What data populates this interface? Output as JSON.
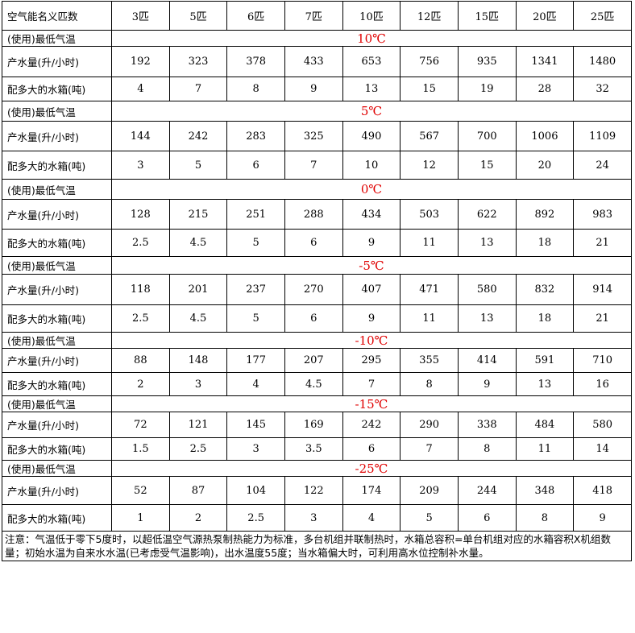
{
  "table": {
    "header": [
      "空气能名义匹数",
      "3匹",
      "5匹",
      "6匹",
      "7匹",
      "10匹",
      "12匹",
      "15匹",
      "20匹",
      "25匹"
    ],
    "groups": [
      {
        "temp_label": "(使用)最低气温",
        "temp": "10℃",
        "rows": [
          {
            "label": "产水量(升/小时)",
            "values": [
              192,
              323,
              378,
              433,
              653,
              756,
              935,
              1341,
              1480
            ]
          },
          {
            "label": "配多大的水箱(吨)",
            "values": [
              4,
              7,
              8,
              9,
              13,
              15,
              19,
              28,
              32
            ]
          }
        ]
      },
      {
        "temp_label": "(使用)最低气温",
        "temp": "5℃",
        "rows": [
          {
            "label": "产水量(升/小时)",
            "values": [
              144,
              242,
              283,
              325,
              490,
              567,
              700,
              1006,
              1109
            ]
          },
          {
            "label": "配多大的水箱(吨)",
            "values": [
              3,
              5,
              6,
              7,
              10,
              12,
              15,
              20,
              24
            ]
          }
        ]
      },
      {
        "temp_label": "(使用)最低气温",
        "temp": "0℃",
        "rows": [
          {
            "label": "产水量(升/小时)",
            "values": [
              128,
              215,
              251,
              288,
              434,
              503,
              622,
              892,
              983
            ]
          },
          {
            "label": "配多大的水箱(吨)",
            "values": [
              2.5,
              4.5,
              5,
              6,
              9,
              11,
              13,
              18,
              21
            ]
          }
        ]
      },
      {
        "temp_label": "(使用)最低气温",
        "temp": "-5℃",
        "rows": [
          {
            "label": "产水量(升/小时)",
            "values": [
              118,
              201,
              237,
              270,
              407,
              471,
              580,
              832,
              914
            ]
          },
          {
            "label": "配多大的水箱(吨)",
            "values": [
              2.5,
              4.5,
              5,
              6,
              9,
              11,
              13,
              18,
              21
            ]
          }
        ]
      },
      {
        "temp_label": "(使用)最低气温",
        "temp": "-10℃",
        "rows": [
          {
            "label": "产水量(升/小时)",
            "values": [
              88,
              148,
              177,
              207,
              295,
              355,
              414,
              591,
              710
            ]
          },
          {
            "label": "配多大的水箱(吨)",
            "values": [
              2,
              3,
              4,
              4.5,
              7,
              8,
              9,
              13,
              16
            ]
          }
        ]
      },
      {
        "temp_label": "(使用)最低气温",
        "temp": "-15℃",
        "rows": [
          {
            "label": "产水量(升/小时)",
            "values": [
              72,
              121,
              145,
              169,
              242,
              290,
              338,
              484,
              580
            ]
          },
          {
            "label": "配多大的水箱(吨)",
            "values": [
              1.5,
              2.5,
              3,
              3.5,
              6,
              7,
              8,
              11,
              14
            ]
          }
        ]
      },
      {
        "temp_label": "(使用)最低气温",
        "temp": "-25℃",
        "rows": [
          {
            "label": "产水量(升/小时)",
            "values": [
              52,
              87,
              104,
              122,
              174,
              209,
              244,
              348,
              418
            ]
          },
          {
            "label": "配多大的水箱(吨)",
            "values": [
              1,
              2,
              2.5,
              3,
              4,
              5,
              6,
              8,
              9
            ]
          }
        ]
      }
    ],
    "note": "注意：气温低于零下5度时，以超低温空气源热泵制热能力为标准，多台机组并联制热时，水箱总容积=单台机组对应的水箱容积X机组数量；初始水温为自来水水温(已考虑受气温影响)，出水温度55度；当水箱偏大时，可利用高水位控制补水量。"
  }
}
